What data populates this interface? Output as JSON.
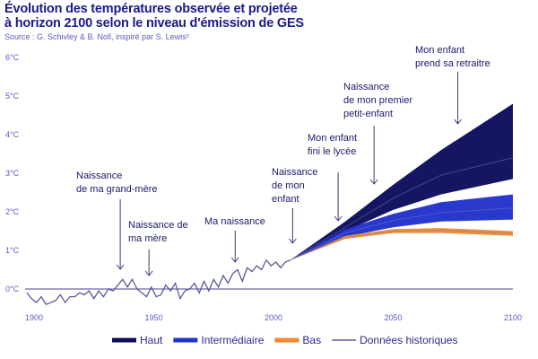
{
  "header": {
    "title_line1": "Évolution des températures observée et projetée",
    "title_line2": "à horizon 2100 selon le niveau d'émission de GES",
    "source": "Source : G. Schivley & B. Noll, inspiré par S. Lewis²"
  },
  "chart_data": {
    "type": "line",
    "title": "Évolution des températures observée et projetée à horizon 2100 selon le niveau d'émission de GES",
    "xlabel": "",
    "ylabel": "",
    "xlim": [
      1900,
      2100
    ],
    "ylim": [
      -0.5,
      6
    ],
    "x_ticks": [
      "1900",
      "1950",
      "2000",
      "2050",
      "2100"
    ],
    "y_ticks": [
      "0°C",
      "1°C",
      "2°C",
      "3°C",
      "4°C",
      "5°C",
      "6°C"
    ],
    "legend_position": "bottom",
    "historical": {
      "name": "Données historiques",
      "color": "#5a5a9c",
      "x": [
        1897,
        1899,
        1901,
        1903,
        1905,
        1907,
        1909,
        1911,
        1913,
        1915,
        1917,
        1919,
        1921,
        1923,
        1925,
        1927,
        1929,
        1931,
        1933,
        1935,
        1937,
        1939,
        1941,
        1943,
        1945,
        1947,
        1949,
        1951,
        1953,
        1955,
        1957,
        1959,
        1961,
        1963,
        1965,
        1967,
        1969,
        1971,
        1973,
        1975,
        1977,
        1979,
        1981,
        1983,
        1985,
        1987,
        1989,
        1991,
        1993,
        1995,
        1997,
        1999,
        2001,
        2003,
        2005,
        2007
      ],
      "y": [
        -0.1,
        -0.25,
        -0.35,
        -0.2,
        -0.4,
        -0.35,
        -0.3,
        -0.15,
        -0.35,
        -0.2,
        -0.2,
        -0.1,
        -0.15,
        -0.05,
        -0.25,
        -0.05,
        -0.2,
        0.0,
        -0.05,
        0.1,
        0.25,
        0.05,
        0.25,
        0.0,
        -0.1,
        -0.2,
        0.05,
        -0.2,
        -0.15,
        0.1,
        -0.05,
        0.15,
        -0.25,
        -0.05,
        0.0,
        0.15,
        -0.1,
        0.2,
        -0.05,
        0.25,
        0.05,
        0.35,
        0.15,
        0.4,
        0.5,
        0.2,
        0.55,
        0.45,
        0.6,
        0.5,
        0.75,
        0.6,
        0.7,
        0.55,
        0.7,
        0.75
      ]
    },
    "series": [
      {
        "name": "Haut",
        "color": "#0d0d5c",
        "x": [
          2007,
          2030,
          2050,
          2070,
          2100
        ],
        "low": [
          0.75,
          1.5,
          2.05,
          2.45,
          2.85
        ],
        "high": [
          0.75,
          1.75,
          2.7,
          3.6,
          4.8
        ],
        "center": [
          0.75,
          1.6,
          2.35,
          2.95,
          3.4
        ]
      },
      {
        "name": "Intermédiaire",
        "color": "#2233cc",
        "x": [
          2007,
          2030,
          2050,
          2070,
          2100
        ],
        "low": [
          0.75,
          1.35,
          1.6,
          1.75,
          1.8
        ],
        "high": [
          0.75,
          1.55,
          1.95,
          2.25,
          2.45
        ],
        "center": [
          0.75,
          1.45,
          1.78,
          1.98,
          2.1
        ]
      },
      {
        "name": "Bas",
        "color": "#f08a30",
        "x": [
          2007,
          2030,
          2050,
          2070,
          2100
        ],
        "low": [
          0.75,
          1.3,
          1.45,
          1.45,
          1.38
        ],
        "high": [
          0.75,
          1.38,
          1.55,
          1.58,
          1.5
        ],
        "center": [
          0.75,
          1.34,
          1.5,
          1.52,
          1.44
        ]
      }
    ],
    "annotations": [
      {
        "lines": [
          "Naissance",
          "de ma grand-mère"
        ],
        "year": 1936
      },
      {
        "lines": [
          "Naissance de",
          "ma mère"
        ],
        "year": 1948
      },
      {
        "lines": [
          "Ma naissance"
        ],
        "year": 1984
      },
      {
        "lines": [
          "Naissance",
          "de mon",
          "enfant"
        ],
        "year": 2008
      },
      {
        "lines": [
          "Mon enfant",
          "fini le lycée"
        ],
        "year": 2027
      },
      {
        "lines": [
          "Naissance",
          "de mon premier",
          "petit-enfant"
        ],
        "year": 2042
      },
      {
        "lines": [
          "Mon enfant",
          "prend sa retraitre"
        ],
        "year": 2077
      }
    ]
  }
}
